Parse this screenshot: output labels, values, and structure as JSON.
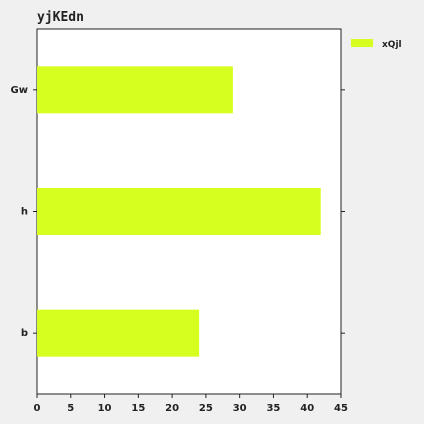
{
  "chart_data": {
    "type": "bar",
    "orientation": "horizontal",
    "title": "yjKEdn",
    "categories": [
      "Gw",
      "h",
      "b"
    ],
    "series": [
      {
        "name": "xQjl",
        "values": [
          29,
          42,
          24
        ]
      }
    ],
    "xlim": [
      0,
      45
    ],
    "x_ticks": [
      0,
      5,
      10,
      15,
      20,
      25,
      30,
      35,
      40,
      45
    ],
    "xlabel": "",
    "ylabel": "",
    "grid": false,
    "legend_position": "top-right",
    "colors": {
      "bar": "#d6ff1f",
      "plot_bg": "#ffffff",
      "axis": "#222222"
    }
  }
}
